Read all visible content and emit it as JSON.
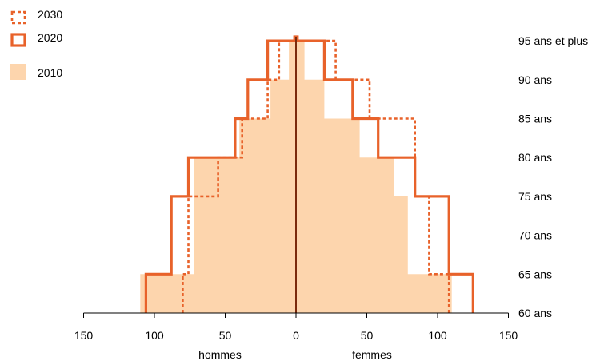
{
  "colors": {
    "accent": "#e8622a",
    "fill_2010": "#fdd5ad",
    "center_line": "#7a2a0c",
    "axis": "#000000"
  },
  "chart_data": {
    "type": "population-pyramid",
    "x_ticks": [
      150,
      100,
      50,
      0,
      50,
      100,
      150
    ],
    "xlim": [
      -150,
      150
    ],
    "left_label": "hommes",
    "right_label": "femmes",
    "age_groups": [
      "60 ans",
      "65 ans",
      "70 ans",
      "75 ans",
      "80 ans",
      "85 ans",
      "90 ans",
      "95 ans et plus"
    ],
    "legend": [
      {
        "name": "2030",
        "style": "dotted"
      },
      {
        "name": "2020",
        "style": "solid"
      },
      {
        "name": "2010",
        "style": "filled"
      }
    ],
    "series": [
      {
        "name": "2010",
        "style": "filled",
        "men": [
          110,
          72,
          72,
          72,
          40,
          18,
          5,
          1
        ],
        "women": [
          110,
          79,
          79,
          69,
          45,
          20,
          6,
          1
        ]
      },
      {
        "name": "2020",
        "style": "solid",
        "men": [
          106,
          88,
          88,
          76,
          43,
          34,
          20,
          1
        ],
        "women": [
          125,
          108,
          108,
          84,
          58,
          40,
          20,
          1
        ]
      },
      {
        "name": "2030",
        "style": "dotted",
        "men": [
          80,
          76,
          76,
          55,
          38,
          20,
          12,
          1
        ],
        "women": [
          108,
          94,
          94,
          84,
          84,
          52,
          28,
          1
        ]
      }
    ]
  }
}
